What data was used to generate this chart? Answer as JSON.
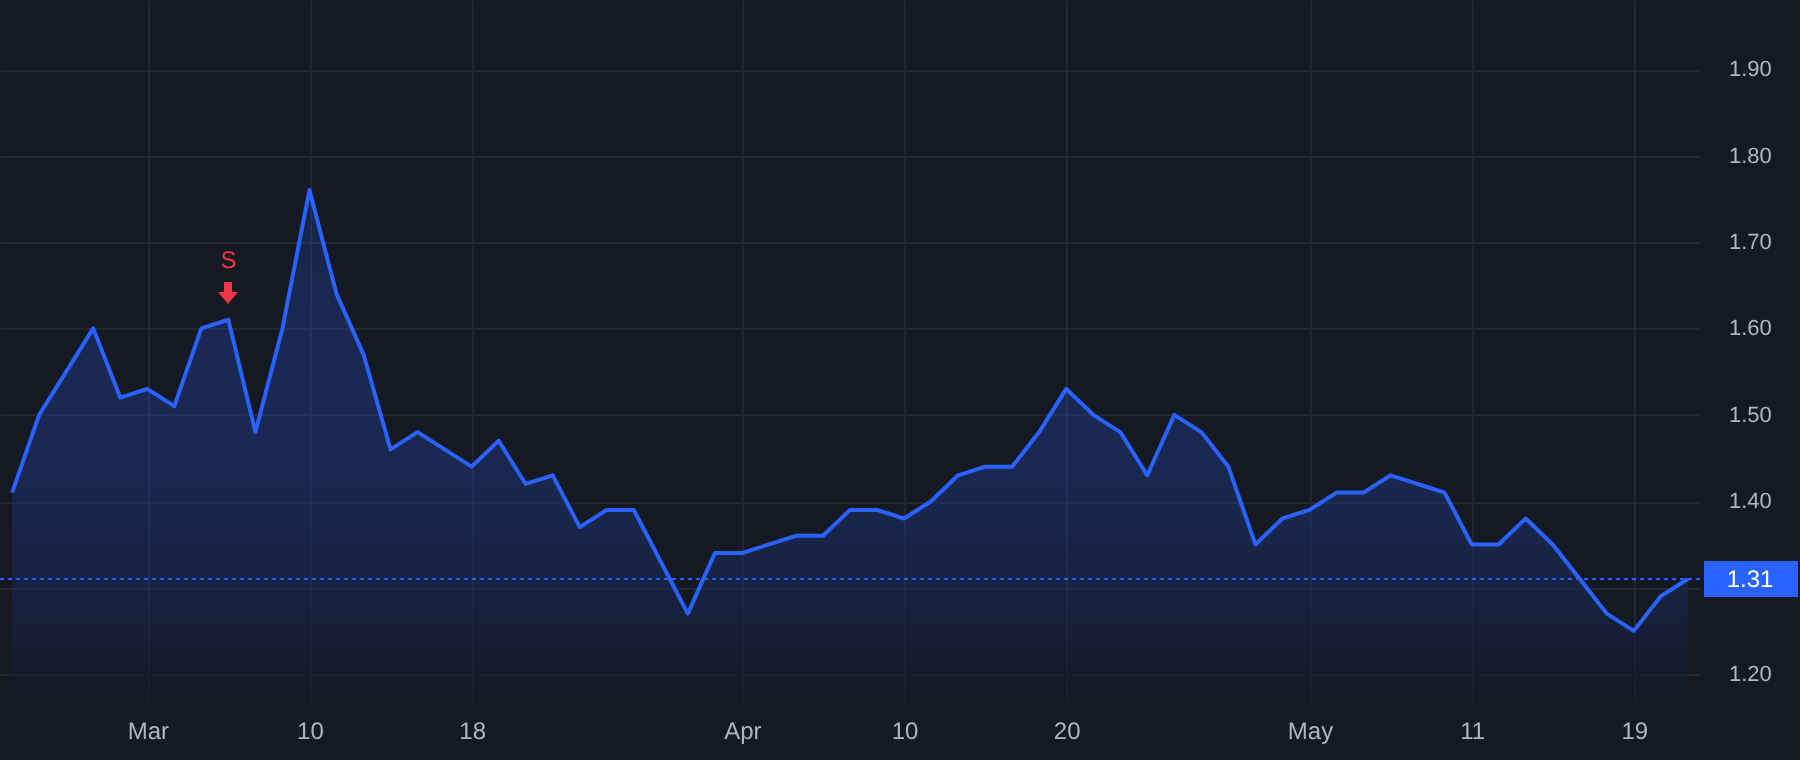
{
  "chart_data": {
    "type": "area",
    "categories": [
      null,
      null,
      null,
      null,
      null,
      "Mar",
      null,
      null,
      null,
      null,
      null,
      "10",
      null,
      null,
      null,
      null,
      null,
      "18",
      null,
      null,
      null,
      null,
      null,
      null,
      null,
      null,
      null,
      "Apr",
      null,
      null,
      null,
      null,
      null,
      "10",
      null,
      null,
      null,
      null,
      null,
      "20",
      null,
      null,
      null,
      null,
      null,
      null,
      null,
      null,
      "May",
      null,
      null,
      null,
      null,
      null,
      "11",
      null,
      null,
      null,
      null,
      null,
      "19",
      null,
      null
    ],
    "series": [
      {
        "color": "#2962ff",
        "values": [
          1.41,
          1.5,
          1.55,
          1.6,
          1.52,
          1.53,
          1.51,
          1.6,
          1.61,
          1.48,
          1.6,
          1.76,
          1.64,
          1.57,
          1.46,
          1.48,
          1.46,
          1.44,
          1.47,
          1.42,
          1.43,
          1.37,
          1.39,
          1.39,
          1.33,
          1.27,
          1.34,
          1.34,
          1.35,
          1.36,
          1.36,
          1.39,
          1.39,
          1.38,
          1.4,
          1.43,
          1.44,
          1.44,
          1.48,
          1.53,
          1.5,
          1.48,
          1.43,
          1.5,
          1.48,
          1.44,
          1.35,
          1.38,
          1.39,
          1.41,
          1.41,
          1.43,
          1.42,
          1.41,
          1.35,
          1.35,
          1.38,
          1.35,
          1.31,
          1.27,
          1.25,
          1.29,
          1.31
        ]
      }
    ],
    "ylim": [
      1.17,
      1.98
    ],
    "yticks": [
      {
        "value": 1.2,
        "label": "1.20"
      },
      {
        "value": 1.3,
        "label": null
      },
      {
        "value": 1.4,
        "label": "1.40"
      },
      {
        "value": 1.5,
        "label": "1.50"
      },
      {
        "value": 1.6,
        "label": "1.60"
      },
      {
        "value": 1.7,
        "label": "1.70"
      },
      {
        "value": 1.8,
        "label": "1.80"
      },
      {
        "value": 1.9,
        "label": "1.90"
      }
    ],
    "grid": true,
    "ref_lines": [
      {
        "axis": "y",
        "value": 1.31,
        "label": "1.31",
        "color": "#2962ff",
        "line_style": "dotted"
      }
    ],
    "annotations": [
      {
        "text": "S",
        "y": 1.61
      }
    ]
  }
}
